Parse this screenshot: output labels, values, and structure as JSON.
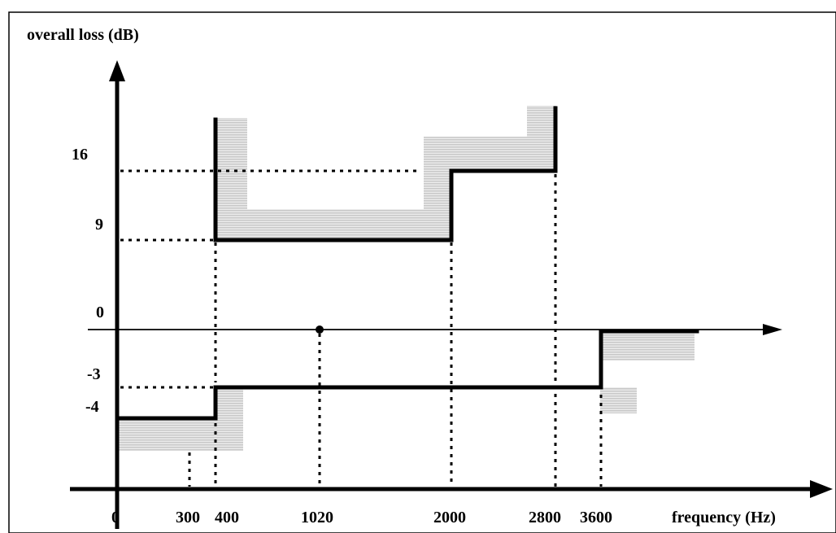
{
  "diagram": {
    "y_axis_label": "overall loss (dB)",
    "x_axis_label": "frequency (Hz)",
    "y_ticks": [
      "16",
      "9",
      "0",
      "-3",
      "-4"
    ],
    "x_ticks": [
      "0",
      "300",
      "400",
      "1020",
      "2000",
      "2800",
      "3600"
    ],
    "reference_point": {
      "frequency_hz": 1020,
      "loss_db": 0
    },
    "upper_mask_db": [
      {
        "from_hz": 400,
        "to_hz": 2000,
        "loss_db": 9
      },
      {
        "from_hz": 2000,
        "to_hz": 2800,
        "loss_db": 16
      }
    ],
    "lower_mask_db": [
      {
        "from_hz": 0,
        "to_hz": 400,
        "loss_db": -4
      },
      {
        "from_hz": 400,
        "to_hz": 3600,
        "loss_db": -3
      },
      {
        "from_hz": 3600,
        "loss_db": 0
      }
    ],
    "colors": {
      "line": "#000000",
      "tolerance_band": "#d4d4d4"
    }
  }
}
